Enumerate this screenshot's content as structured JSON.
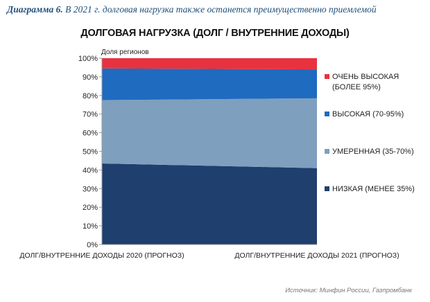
{
  "caption": {
    "label": "Диаграмма 6.",
    "text": "В 2021 г. долговая нагрузка также останется преимущественно приемлемой"
  },
  "source": "Источник: Минфин России, Газпромбанк",
  "chart_data": {
    "type": "area",
    "stacked": true,
    "percent": true,
    "title": "ДОЛГОВАЯ НАГРУЗКА (ДОЛГ / ВНУТРЕННИЕ ДОХОДЫ)",
    "ylabel": "Доля регионов",
    "xlabel": "",
    "ylim": [
      0,
      100
    ],
    "y_ticks": [
      "0%",
      "10%",
      "20%",
      "30%",
      "40%",
      "50%",
      "60%",
      "70%",
      "80%",
      "90%",
      "100%"
    ],
    "categories": [
      "ДОЛГ/ВНУТРЕННИЕ ДОХОДЫ 2020 (ПРОГНОЗ)",
      "ДОЛГ/ВНУТРЕННИЕ ДОХОДЫ 2021 (ПРОГНОЗ)"
    ],
    "grid": false,
    "legend_position": "right",
    "series": [
      {
        "name": "НИЗКАЯ (МЕНЕЕ 35%)",
        "color": "#1f3f6e",
        "values": [
          43.5,
          41
        ]
      },
      {
        "name": "УМЕРЕННАЯ (35-70%)",
        "color": "#7f9fbf",
        "values": [
          34,
          37.5
        ]
      },
      {
        "name": "ВЫСОКАЯ (70-95%)",
        "color": "#1f6bbf",
        "values": [
          17,
          15.5
        ]
      },
      {
        "name": "ОЧЕНЬ ВЫСОКАЯ (БОЛЕЕ 95%)",
        "color": "#e8323f",
        "values": [
          5.5,
          6
        ]
      }
    ]
  }
}
